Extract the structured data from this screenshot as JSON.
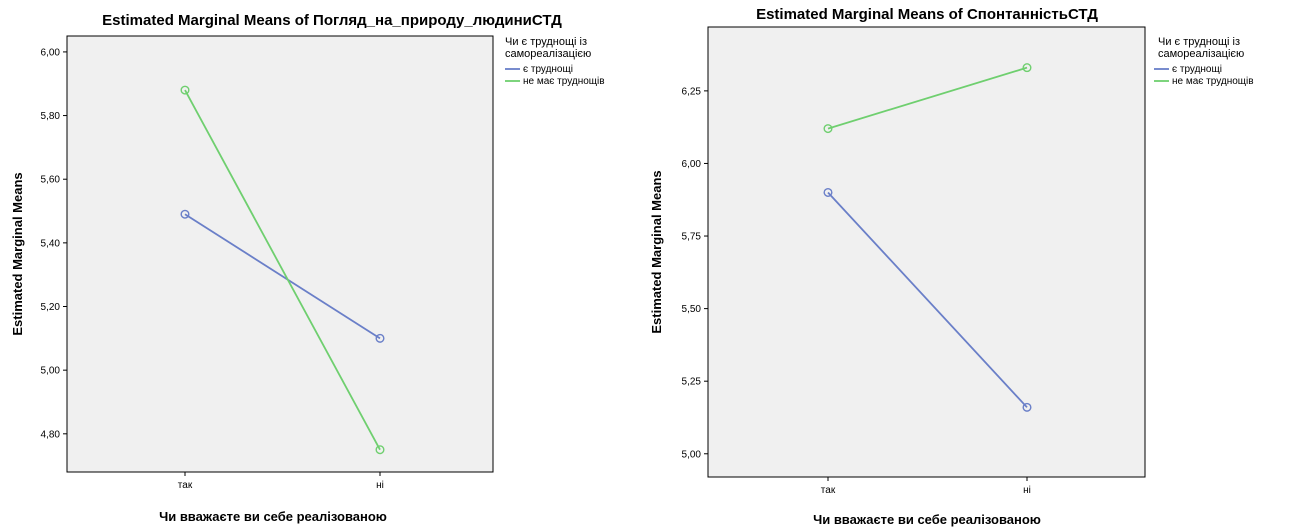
{
  "chart_data": [
    {
      "type": "line",
      "title": "Estimated Marginal Means of Погляд_на_природу_людиниСТД",
      "xlabel": "Чи вважаєте ви себе реалізованою",
      "ylabel": "Estimated Marginal Means",
      "categories": [
        "так",
        "ні"
      ],
      "ylim": [
        4.68,
        6.05
      ],
      "yticks": [
        4.8,
        5.0,
        5.2,
        5.4,
        5.6,
        5.8,
        6.0
      ],
      "ytick_labels": [
        "4,80",
        "5,00",
        "5,20",
        "5,40",
        "5,60",
        "5,80",
        "6,00"
      ],
      "legend": {
        "title_lines": [
          "Чи є труднощі із",
          "самореалізацією"
        ],
        "placement": "right"
      },
      "series": [
        {
          "name": "є труднощі",
          "color": "#6a7fc8",
          "values": [
            5.49,
            5.1
          ]
        },
        {
          "name": "не має труднощів",
          "color": "#6fcf6f",
          "values": [
            5.88,
            4.75
          ]
        }
      ]
    },
    {
      "type": "line",
      "title": "Estimated Marginal Means of СпонтанністьСТД",
      "xlabel": "Чи вважаєте ви себе реалізованою",
      "ylabel": "Estimated Marginal Means",
      "categories": [
        "так",
        "ні"
      ],
      "ylim": [
        4.92,
        6.47
      ],
      "yticks": [
        5.0,
        5.25,
        5.5,
        5.75,
        6.0,
        6.25
      ],
      "ytick_labels": [
        "5,00",
        "5,25",
        "5,50",
        "5,75",
        "6,00",
        "6,25"
      ],
      "legend": {
        "title_lines": [
          "Чи є труднощі із",
          "самореалізацією"
        ],
        "placement": "right"
      },
      "series": [
        {
          "name": "є труднощі",
          "color": "#6a7fc8",
          "values": [
            5.9,
            5.16
          ]
        },
        {
          "name": "не має труднощів",
          "color": "#6fcf6f",
          "values": [
            6.12,
            6.33
          ]
        }
      ]
    }
  ]
}
